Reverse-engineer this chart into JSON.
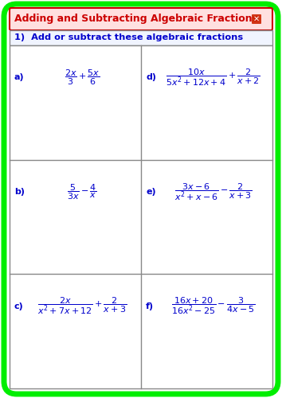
{
  "title": "Adding and Subtracting Algebraic Fractions",
  "section_label": "1)  Add or subtract these algebraic fractions",
  "problems": [
    {
      "label": "a)",
      "latex": "$\\dfrac{2x}{3}+\\dfrac{5x}{6}$",
      "col": 0,
      "row": 0
    },
    {
      "label": "b)",
      "latex": "$\\dfrac{5}{3x}-\\dfrac{4}{x}$",
      "col": 0,
      "row": 1
    },
    {
      "label": "c)",
      "latex": "$\\dfrac{2x}{x^2+7x+12}+\\dfrac{2}{x+3}$",
      "col": 0,
      "row": 2
    },
    {
      "label": "d)",
      "latex": "$\\dfrac{10x}{5x^2+12x+4}+\\dfrac{2}{x+2}$",
      "col": 1,
      "row": 0
    },
    {
      "label": "e)",
      "latex": "$\\dfrac{3x-6}{x^2+x-6}-\\dfrac{2}{x+3}$",
      "col": 1,
      "row": 1
    },
    {
      "label": "f)",
      "latex": "$\\dfrac{16x+20}{16x^2-25}-\\dfrac{3}{4x-5}$",
      "col": 1,
      "row": 2
    }
  ],
  "outer_border_color": "#00ee00",
  "title_bg_color": "#ffe0e0",
  "title_text_color": "#cc0000",
  "section_text_color": "#0000cc",
  "problem_text_color": "#0000cc",
  "label_text_color": "#0000cc",
  "grid_line_color": "#888888",
  "background_color": "#ffffff",
  "fig_width": 3.54,
  "fig_height": 5.0,
  "dpi": 100
}
